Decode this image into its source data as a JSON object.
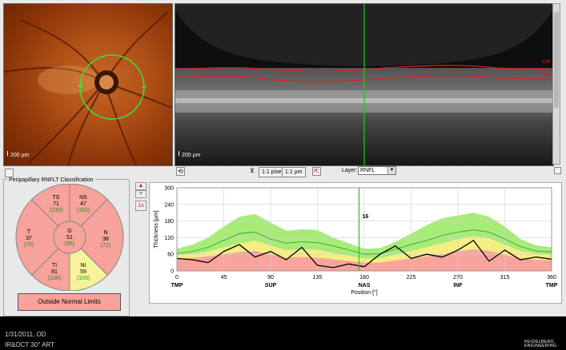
{
  "fundus": {
    "scale_label": "200 µm"
  },
  "oct": {
    "scale_label": "200 µm",
    "ilm_label": "ILM",
    "rnfl_label": "RNFL"
  },
  "toolbar": {
    "pixel_button": "1:1 pixel",
    "um_button": "1:1 µm",
    "layer_label": "Layer:",
    "layer_value": "RNFL"
  },
  "classification": {
    "title": "Peripapillary RNFLT Classification",
    "segments": [
      {
        "id": "TS",
        "value": "71",
        "ref": "(130)",
        "color": "#f7a29a"
      },
      {
        "id": "NS",
        "value": "47",
        "ref": "(102)",
        "color": "#f7a29a"
      },
      {
        "id": "T",
        "value": "37",
        "ref": "(70)",
        "color": "#f7a29a"
      },
      {
        "id": "G",
        "value": "51",
        "ref": "(95)",
        "color": "#f7a29a"
      },
      {
        "id": "N",
        "value": "38",
        "ref": "(72)",
        "color": "#f7a29a"
      },
      {
        "id": "TI",
        "value": "81",
        "ref": "(138)",
        "color": "#f7a29a"
      },
      {
        "id": "NI",
        "value": "59",
        "ref": "(103)",
        "color": "#f6f39a"
      }
    ],
    "result": "Outside Normal Limits"
  },
  "side_controls": {
    "zoom_label": "1x"
  },
  "chart_data": {
    "type": "area",
    "ylabel": "Thickness [µm]",
    "xlabel": "Position [°]",
    "ylim": [
      0,
      300
    ],
    "xlim": [
      0,
      360
    ],
    "y_ticks": [
      0,
      60,
      120,
      180,
      240,
      300
    ],
    "x_ticks": [
      0,
      45,
      90,
      135,
      180,
      225,
      270,
      315,
      360
    ],
    "x_sector_labels": [
      {
        "x": 0,
        "label": "TMP"
      },
      {
        "x": 90,
        "label": "SUP"
      },
      {
        "x": 180,
        "label": "NAS"
      },
      {
        "x": 270,
        "label": "INF"
      },
      {
        "x": 360,
        "label": "TMP"
      }
    ],
    "cursor": {
      "x": 175,
      "label": "16"
    },
    "x": [
      0,
      15,
      30,
      45,
      60,
      75,
      90,
      105,
      120,
      135,
      150,
      165,
      180,
      195,
      210,
      225,
      240,
      255,
      270,
      285,
      300,
      315,
      330,
      345,
      360
    ],
    "band_red_upper": [
      45,
      47,
      52,
      60,
      68,
      72,
      60,
      48,
      50,
      48,
      42,
      36,
      30,
      30,
      38,
      45,
      52,
      60,
      70,
      78,
      72,
      58,
      45,
      40,
      38
    ],
    "band_yellow_upper": [
      60,
      62,
      70,
      85,
      100,
      110,
      92,
      75,
      78,
      76,
      65,
      55,
      45,
      46,
      58,
      72,
      85,
      100,
      115,
      125,
      118,
      95,
      72,
      62,
      58
    ],
    "band_green_upper": [
      80,
      95,
      120,
      160,
      195,
      205,
      175,
      145,
      150,
      148,
      120,
      100,
      80,
      82,
      105,
      135,
      165,
      190,
      200,
      210,
      195,
      160,
      115,
      92,
      85
    ],
    "mean": [
      62,
      70,
      85,
      110,
      135,
      140,
      115,
      100,
      105,
      102,
      90,
      76,
      60,
      62,
      78,
      95,
      110,
      128,
      140,
      148,
      140,
      115,
      88,
      72,
      68
    ],
    "patient": [
      45,
      40,
      30,
      70,
      95,
      50,
      70,
      40,
      85,
      20,
      12,
      25,
      15,
      60,
      90,
      45,
      60,
      50,
      75,
      110,
      35,
      75,
      40,
      50,
      42
    ]
  },
  "footer": {
    "date": "1/31/2011, OD",
    "mode": "IR&OCT 30° ART",
    "brand_line1": "HEIDELBERG",
    "brand_line2": "ENGINEERING"
  },
  "colors": {
    "red_band": "#f8a49c",
    "yellow_band": "#f4ee84",
    "green_band": "#a8ec78",
    "cursor": "#22c422",
    "mean_line": "#2e9a2e"
  }
}
